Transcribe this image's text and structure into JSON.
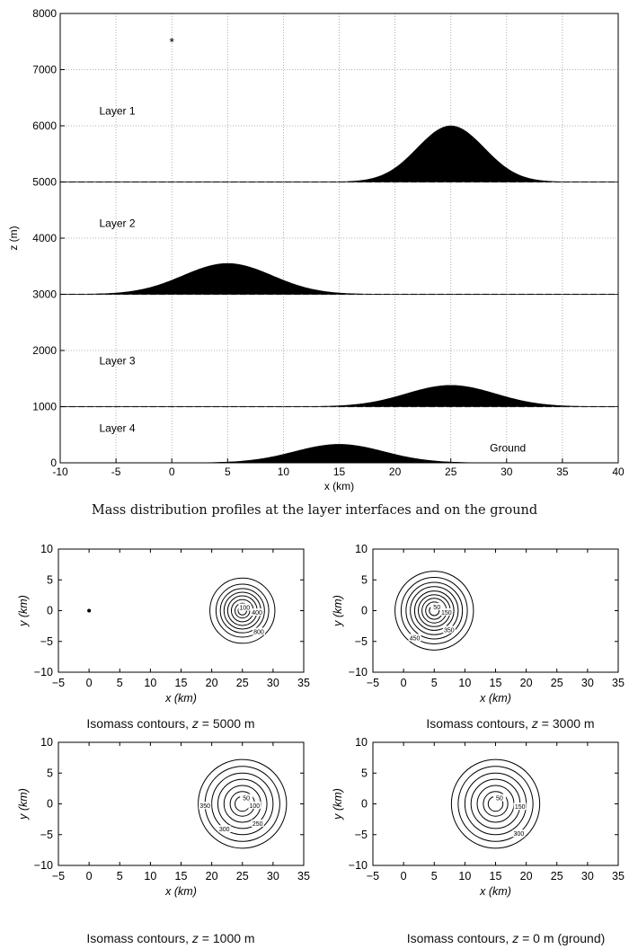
{
  "caption": "Mass distribution profiles at the layer interfaces and on the ground",
  "chart_data": [
    {
      "type": "area",
      "xlabel": "x (km)",
      "ylabel": "z (m)",
      "xlim": [
        -10,
        40
      ],
      "ylim": [
        0,
        8000
      ],
      "xticks": [
        -10,
        -5,
        0,
        5,
        10,
        15,
        20,
        25,
        30,
        35,
        40
      ],
      "yticks": [
        0,
        1000,
        2000,
        3000,
        4000,
        5000,
        6000,
        7000,
        8000
      ],
      "grid": true,
      "source_marker": {
        "x": 0,
        "y": 7500,
        "symbol": "*"
      },
      "interfaces": [
        5000,
        3000,
        1000
      ],
      "annotations": [
        {
          "text": "Layer 1",
          "x": -6.5,
          "y": 6200
        },
        {
          "text": "Layer 2",
          "x": -6.5,
          "y": 4200
        },
        {
          "text": "Layer 3",
          "x": -6.5,
          "y": 1750
        },
        {
          "text": "Layer 4",
          "x": -6.5,
          "y": 550
        },
        {
          "text": "Ground",
          "x": 28.5,
          "y": 200
        }
      ],
      "series": [
        {
          "base": 5000,
          "center": 25,
          "peak": 6000,
          "sigma": 3.0
        },
        {
          "base": 3000,
          "center": 5,
          "peak": 3550,
          "sigma": 4.0
        },
        {
          "base": 1000,
          "center": 25,
          "peak": 1380,
          "sigma": 4.0
        },
        {
          "base": 0,
          "center": 15,
          "peak": 330,
          "sigma": 4.0
        }
      ]
    },
    {
      "type": "contour",
      "xlabel": "x (km)",
      "ylabel": "y (km)",
      "xlim": [
        -5,
        35
      ],
      "ylim": [
        -10,
        10
      ],
      "xticks": [
        -5,
        0,
        5,
        10,
        15,
        20,
        25,
        30,
        35
      ],
      "yticks": [
        -10,
        -5,
        0,
        5,
        10
      ],
      "center": [
        25,
        0
      ],
      "radii": [
        5.3,
        4.3,
        3.6,
        3.0,
        2.4,
        1.8,
        1.2,
        0.7
      ],
      "labels": [
        "100",
        "400",
        "800"
      ],
      "source_marker": {
        "x": 0,
        "y": 0
      },
      "caption_prefix": "Isomass contours, ",
      "caption_var": "z",
      "caption_suffix": " = 5000 m"
    },
    {
      "type": "contour",
      "xlabel": "x (km)",
      "ylabel": "y (km)",
      "xlim": [
        -5,
        35
      ],
      "ylim": [
        -10,
        10
      ],
      "xticks": [
        -5,
        0,
        5,
        10,
        15,
        20,
        25,
        30,
        35
      ],
      "yticks": [
        -10,
        -5,
        0,
        5,
        10
      ],
      "center": [
        5,
        0
      ],
      "radii": [
        6.4,
        5.4,
        4.6,
        3.9,
        3.2,
        2.6,
        2.0,
        1.4,
        0.8
      ],
      "labels": [
        "50",
        "150",
        "350",
        "450"
      ],
      "caption_prefix": "Isomass contours, ",
      "caption_var": "z",
      "caption_suffix": " = 3000 m"
    },
    {
      "type": "contour",
      "xlabel": "x (km)",
      "ylabel": "y (km)",
      "xlim": [
        -5,
        35
      ],
      "ylim": [
        -10,
        10
      ],
      "xticks": [
        -5,
        0,
        5,
        10,
        15,
        20,
        25,
        30,
        35
      ],
      "yticks": [
        -10,
        -5,
        0,
        5,
        10
      ],
      "center": [
        25,
        0
      ],
      "radii": [
        7.2,
        6.1,
        5.0,
        4.0,
        3.0,
        2.0,
        1.2
      ],
      "labels": [
        "50",
        "100",
        "250",
        "300",
        "350"
      ],
      "caption_prefix": "Isomass contours, ",
      "caption_var": "z",
      "caption_suffix": " = 1000 m"
    },
    {
      "type": "contour",
      "xlabel": "x (km)",
      "ylabel": "y (km)",
      "xlim": [
        -5,
        35
      ],
      "ylim": [
        -10,
        10
      ],
      "xticks": [
        -5,
        0,
        5,
        10,
        15,
        20,
        25,
        30,
        35
      ],
      "yticks": [
        -10,
        -5,
        0,
        5,
        10
      ],
      "center": [
        15,
        0
      ],
      "radii": [
        7.2,
        6.1,
        5.0,
        4.0,
        3.0,
        2.0,
        1.2
      ],
      "labels": [
        "50",
        "150",
        "300"
      ],
      "caption_prefix": "Isomass contours, ",
      "caption_var": "z",
      "caption_suffix": " = 0 m (ground)"
    }
  ]
}
